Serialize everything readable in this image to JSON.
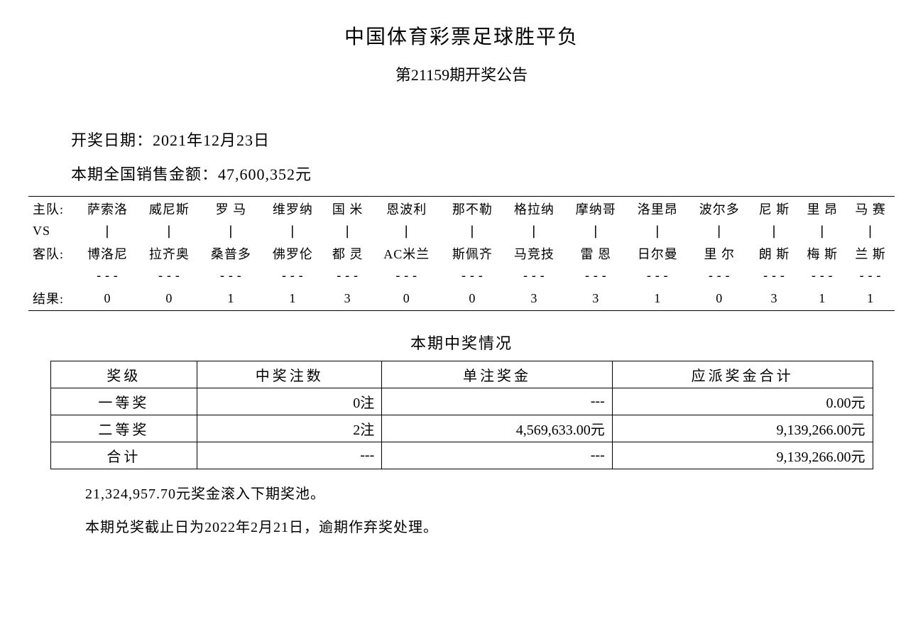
{
  "header": {
    "title": "中国体育彩票足球胜平负",
    "subtitle": "第21159期开奖公告"
  },
  "info": {
    "draw_date_label": "开奖日期：",
    "draw_date_value": "2021年12月23日",
    "sales_label": "本期全国销售金额：",
    "sales_value": "47,600,352元"
  },
  "matches": {
    "home_label": "主队:",
    "vs_label": "VS",
    "away_label": "客队:",
    "result_label": "结果:",
    "vs_sep": "|",
    "dash": "---",
    "home_teams": [
      "萨索洛",
      "威尼斯",
      "罗 马",
      "维罗纳",
      "国 米",
      "恩波利",
      "那不勒",
      "格拉纳",
      "摩纳哥",
      "洛里昂",
      "波尔多",
      "尼 斯",
      "里 昂",
      "马 赛"
    ],
    "away_teams": [
      "博洛尼",
      "拉齐奥",
      "桑普多",
      "佛罗伦",
      "都 灵",
      "AC米兰",
      "斯佩齐",
      "马竞技",
      "雷 恩",
      "日尔曼",
      "里 尔",
      "朗 斯",
      "梅 斯",
      "兰 斯"
    ],
    "results": [
      "0",
      "0",
      "1",
      "1",
      "3",
      "0",
      "0",
      "3",
      "3",
      "1",
      "0",
      "3",
      "1",
      "1"
    ]
  },
  "prize_section": {
    "title": "本期中奖情况",
    "columns": [
      "奖级",
      "中奖注数",
      "单注奖金",
      "应派奖金合计"
    ],
    "rows": [
      {
        "level": "一等奖",
        "count": "0注",
        "unit": "---",
        "total": "0.00元"
      },
      {
        "level": "二等奖",
        "count": "2注",
        "unit": "4,569,633.00元",
        "total": "9,139,266.00元"
      },
      {
        "level": "合计",
        "count": "---",
        "unit": "---",
        "total": "9,139,266.00元"
      }
    ]
  },
  "footer": {
    "rollover": "21,324,957.70元奖金滚入下期奖池。",
    "deadline": "本期兑奖截止日为2022年2月21日，逾期作弃奖处理。"
  },
  "style": {
    "background_color": "#ffffff",
    "text_color": "#000000",
    "border_color": "#000000",
    "title_fontsize": 28,
    "body_fontsize": 20
  }
}
